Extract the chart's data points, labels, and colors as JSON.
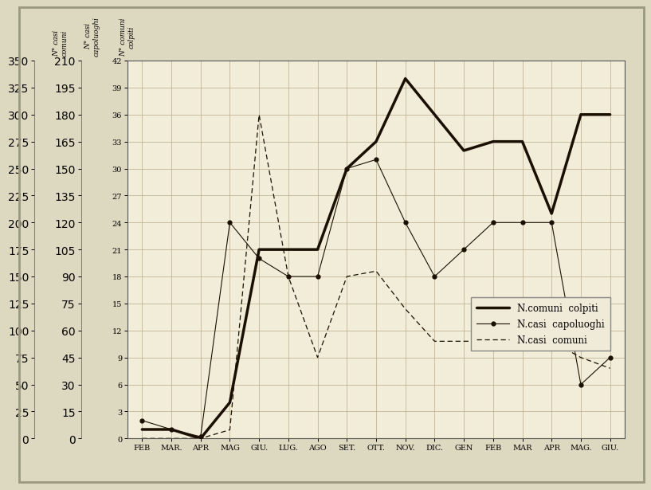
{
  "months": [
    "FEB",
    "MAR.",
    "APR",
    "MAG",
    "GIU.",
    "LUG.",
    "AGO",
    "SET.",
    "OTT.",
    "NOV.",
    "DIC.",
    "GEN",
    "FEB",
    "MAR",
    "APR",
    "MAG.",
    "GIU."
  ],
  "comuni_colpiti": [
    1,
    1,
    0,
    4,
    21,
    21,
    21,
    30,
    33,
    40,
    36,
    32,
    33,
    33,
    25,
    36,
    36
  ],
  "casi_capoluoghi": [
    10,
    5,
    1,
    120,
    100,
    90,
    90,
    150,
    155,
    120,
    90,
    105,
    120,
    120,
    120,
    30,
    45
  ],
  "casi_comuni": [
    0,
    0,
    0,
    8,
    300,
    150,
    75,
    150,
    155,
    120,
    90,
    90,
    90,
    90,
    90,
    75,
    65
  ],
  "legend_1": "N.comuni  colpiti",
  "legend_2": "N.casi  capoluoghi",
  "legend_3": "N.casi  comuni",
  "bg_color": "#f2edd8",
  "outer_bg": "#ddd8c0",
  "grid_color": "#b8aa88",
  "line_color": "#1a0f00",
  "y1_ticks": [
    0,
    15,
    30,
    45,
    60,
    75,
    90,
    105,
    120,
    135,
    150,
    165,
    180,
    195,
    210
  ],
  "y2_ticks": [
    0,
    25,
    50,
    75,
    100,
    125,
    150,
    175,
    200,
    225,
    250,
    275,
    300,
    325,
    350
  ],
  "y3_ticks": [
    0,
    3,
    6,
    9,
    12,
    15,
    18,
    21,
    24,
    27,
    30,
    33,
    36,
    39,
    42
  ]
}
